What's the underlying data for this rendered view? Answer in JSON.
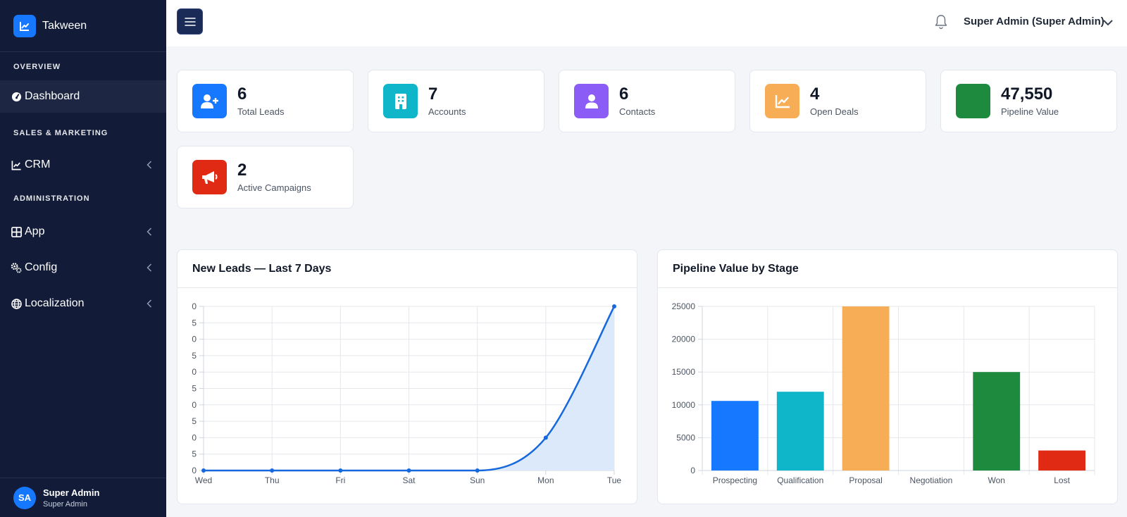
{
  "brand": {
    "name": "Takween",
    "logo_icon": "chart-line-icon"
  },
  "sidebar": {
    "sections": [
      {
        "label": "OVERVIEW"
      },
      {
        "label": "SALES & MARKETING"
      },
      {
        "label": "ADMINISTRATION"
      }
    ],
    "items": [
      {
        "label": "Dashboard",
        "icon": "gauge-icon"
      },
      {
        "label": "CRM",
        "icon": "chart-line-icon"
      },
      {
        "label": "App",
        "icon": "grid-icon"
      },
      {
        "label": "Config",
        "icon": "cogs-icon"
      },
      {
        "label": "Localization",
        "icon": "globe-icon"
      }
    ],
    "user": {
      "initials": "SA",
      "name": "Super Admin",
      "role": "Super Admin"
    }
  },
  "header": {
    "user_label": "Super Admin (Super Admin)"
  },
  "stats": [
    {
      "value": "6",
      "label": "Total Leads",
      "color": "#1677ff",
      "icon": "user-plus-icon"
    },
    {
      "value": "7",
      "label": "Accounts",
      "color": "#0fb5c9",
      "icon": "building-icon"
    },
    {
      "value": "6",
      "label": "Contacts",
      "color": "#8b5cf6",
      "icon": "user-icon"
    },
    {
      "value": "4",
      "label": "Open Deals",
      "color": "#f6ad55",
      "icon": "chart-line-icon"
    },
    {
      "value": "47,550",
      "label": "Pipeline Value",
      "color": "#1e8a3e",
      "icon": ""
    },
    {
      "value": "2",
      "label": "Active Campaigns",
      "color": "#e02a14",
      "icon": "megaphone-icon"
    }
  ],
  "leads_chart": {
    "title": "New Leads — Last 7 Days",
    "chart_data": {
      "type": "area",
      "categories": [
        "Wed",
        "Thu",
        "Fri",
        "Sat",
        "Sun",
        "Mon",
        "Tue"
      ],
      "values": [
        0,
        0,
        0,
        0,
        0,
        1,
        5
      ],
      "y_tick_labels": [
        "0",
        "5",
        "0",
        "5",
        "0",
        "5",
        "0",
        "5",
        "0",
        "5",
        "0"
      ],
      "ylim": [
        0,
        5
      ],
      "color": "#1668dc",
      "grid": true
    }
  },
  "pipeline_chart": {
    "title": "Pipeline Value by Stage",
    "chart_data": {
      "type": "bar",
      "categories": [
        "Prospecting",
        "Qualification",
        "Proposal",
        "Negotiation",
        "Won",
        "Lost"
      ],
      "values": [
        10600,
        12000,
        25000,
        0,
        15000,
        3050
      ],
      "colors": [
        "#1677ff",
        "#0fb5c9",
        "#f6ad55",
        "#8b5cf6",
        "#1e8a3e",
        "#e02a14"
      ],
      "y_ticks": [
        0,
        5000,
        10000,
        15000,
        20000,
        25000
      ],
      "ylim": [
        0,
        25000
      ],
      "grid": true
    }
  }
}
